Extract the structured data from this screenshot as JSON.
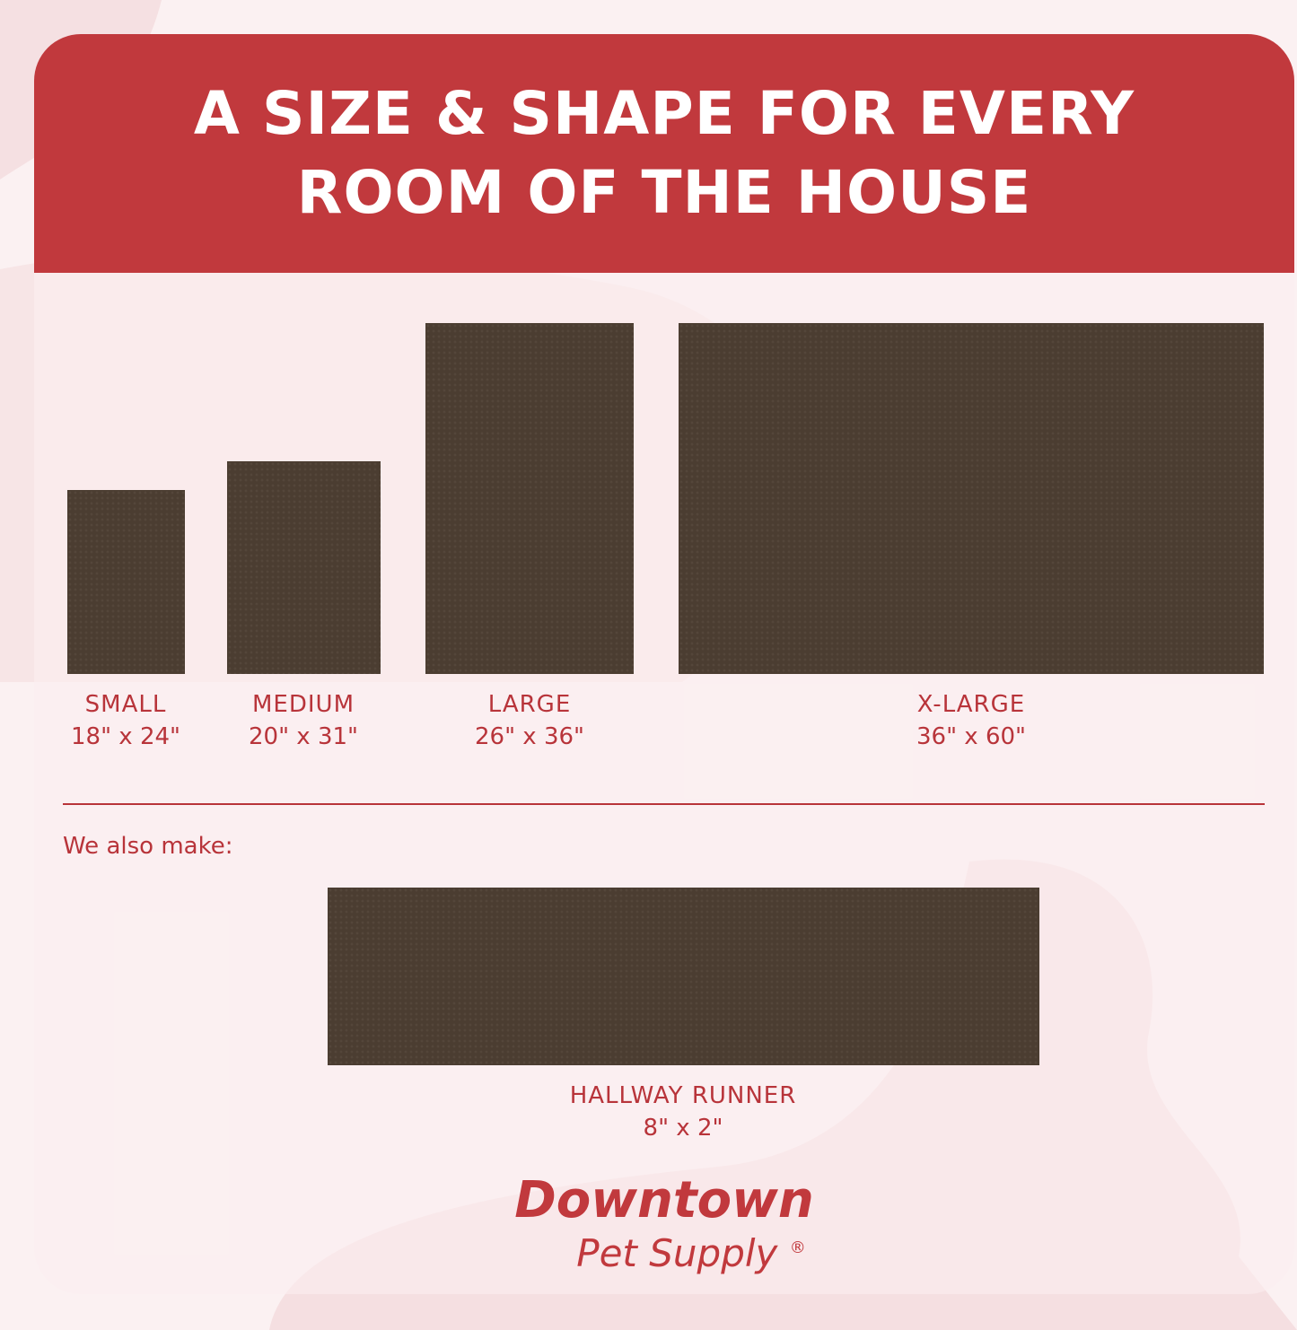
{
  "header": {
    "title_line1": "A SIZE & SHAPE FOR EVERY",
    "title_line2": "ROOM OF THE HOUSE"
  },
  "sizes": [
    {
      "name": "SMALL",
      "dims": "18\" x 24\""
    },
    {
      "name": "MEDIUM",
      "dims": "20\" x 31\""
    },
    {
      "name": "LARGE",
      "dims": "26\" x 36\""
    },
    {
      "name": "X-LARGE",
      "dims": "36\" x 60\""
    }
  ],
  "also": {
    "label": "We also make:",
    "runner": {
      "name": "HALLWAY RUNNER",
      "dims": "8\" x 2\""
    }
  },
  "logo": {
    "line1": "Downtown",
    "line2": "Pet Supply",
    "mark": "®"
  },
  "colors": {
    "header": "#c1393d",
    "text": "#b8343a",
    "mat": "#4b3d31",
    "background": "#fbf1f2"
  }
}
